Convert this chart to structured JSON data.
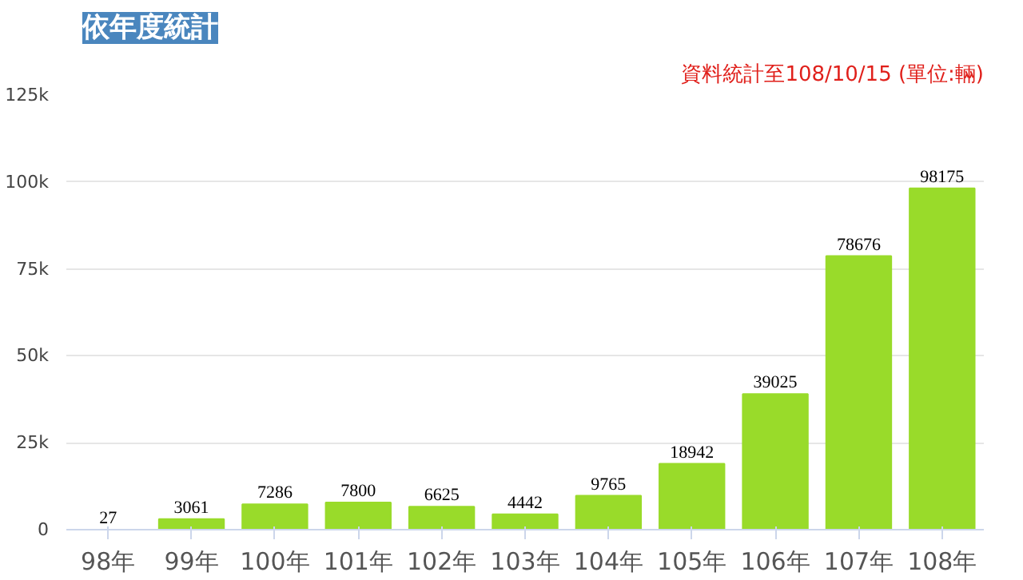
{
  "chart_data": {
    "type": "bar",
    "title": "依年度統計",
    "annotations": [
      "資料統計至108/10/15 (單位:輛)"
    ],
    "categories": [
      "98年",
      "99年",
      "100年",
      "101年",
      "102年",
      "103年",
      "104年",
      "105年",
      "106年",
      "107年",
      "108年"
    ],
    "values": [
      27,
      3061,
      7286,
      7800,
      6625,
      4442,
      9765,
      18942,
      39025,
      78676,
      98175
    ],
    "color": "#99db2a",
    "ylim": [
      0,
      125000
    ],
    "yticks": [
      0,
      {
        "value": 25000,
        "label": "25k"
      },
      {
        "value": 50000,
        "label": "50k"
      },
      {
        "value": 75000,
        "label": "75k"
      },
      {
        "value": 100000,
        "label": "100k"
      },
      {
        "value": 125000,
        "label": "125k"
      }
    ],
    "grid": "y",
    "data_labels": true
  }
}
